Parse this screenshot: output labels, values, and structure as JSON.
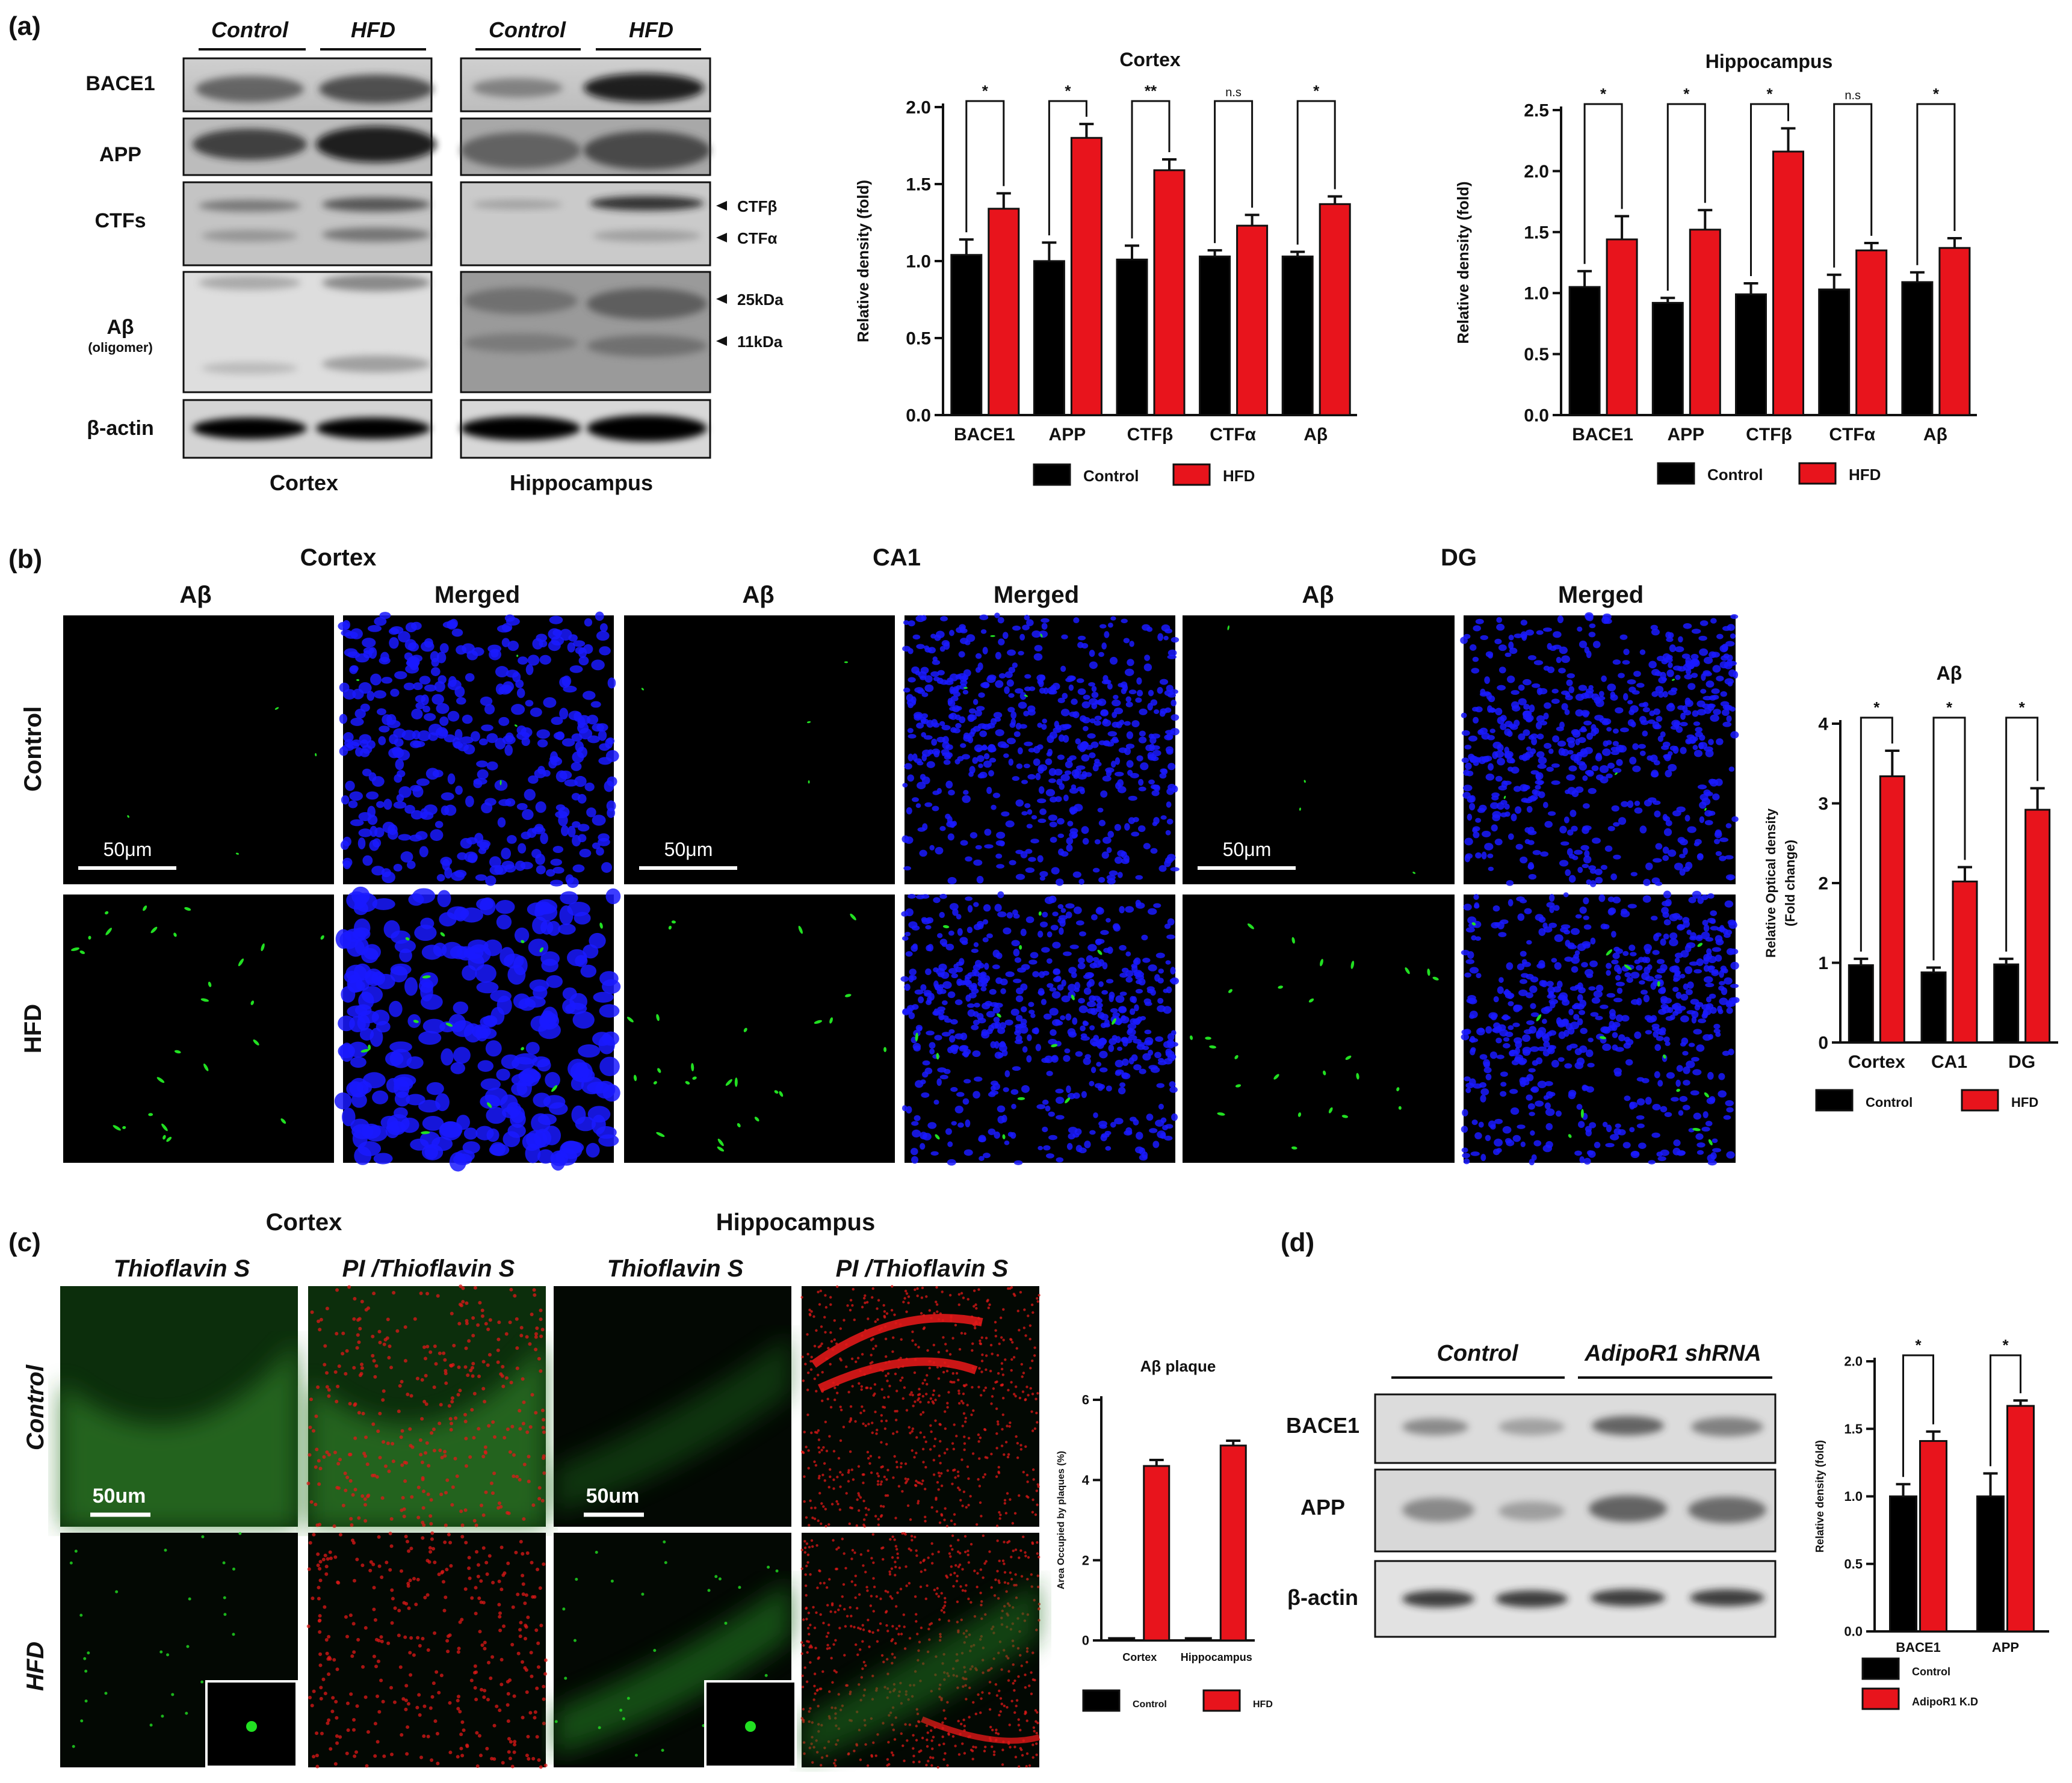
{
  "panel_a": {
    "letter": "(a)",
    "blot": {
      "group_headers": [
        "Control",
        "HFD"
      ],
      "row_labels": [
        "BACE1",
        "APP",
        "CTFs",
        "Aβ",
        "β-actin"
      ],
      "row_sublabel": "(oligomer)",
      "region_labels": [
        "Cortex",
        "Hippocampus"
      ],
      "band_markers": [
        "CTFβ",
        "CTFα",
        "25kDa",
        "11kDa"
      ]
    }
  },
  "panel_b": {
    "letter": "(b)",
    "region_titles": [
      "Cortex",
      "CA1",
      "DG"
    ],
    "column_titles": [
      "Aβ",
      "Merged",
      "Aβ",
      "Merged",
      "Aβ",
      "Merged"
    ],
    "row_labels": [
      "Control",
      "HFD"
    ],
    "scale_bar": "50μm"
  },
  "panel_c": {
    "letter": "(c)",
    "region_titles": [
      "Cortex",
      "Hippocampus"
    ],
    "column_titles": [
      "Thioflavin S",
      "PI /Thioflavin S",
      "Thioflavin S",
      "PI /Thioflavin S"
    ],
    "row_labels": [
      "Control",
      "HFD"
    ],
    "scale_bar": "50um"
  },
  "panel_d": {
    "letter": "(d)",
    "group_headers": [
      "Control",
      "AdipoR1 shRNA"
    ],
    "row_labels": [
      "BACE1",
      "APP",
      "β-actin"
    ]
  },
  "colors": {
    "control": "#000000",
    "treated": "#e8141c",
    "nuclei": "#1a1aff",
    "abeta": "#22e022",
    "pi": "#e01818"
  },
  "chart_data": [
    {
      "id": "a_cortex",
      "type": "bar",
      "title": "Cortex",
      "ylabel": "Relative density (fold)",
      "xlabel": "",
      "categories": [
        "BACE1",
        "APP",
        "CTFβ",
        "CTFα",
        "Aβ"
      ],
      "series": [
        {
          "name": "Control",
          "values": [
            1.04,
            1.0,
            1.01,
            1.03,
            1.03
          ],
          "errors": [
            0.1,
            0.12,
            0.09,
            0.04,
            0.03
          ]
        },
        {
          "name": "HFD",
          "values": [
            1.34,
            1.8,
            1.59,
            1.23,
            1.37
          ],
          "errors": [
            0.1,
            0.09,
            0.07,
            0.07,
            0.05
          ]
        }
      ],
      "significance": [
        "*",
        "*",
        "**",
        "n.s",
        "*"
      ],
      "ylim": [
        0,
        2.0
      ],
      "yticks": [
        0.0,
        0.5,
        1.0,
        1.5,
        2.0
      ],
      "tick_labels": [
        "0.0",
        "0.5",
        "1.0",
        "1.5",
        "2.0"
      ],
      "legend": [
        "Control",
        "HFD"
      ],
      "legend_position": "bottom"
    },
    {
      "id": "a_hippo",
      "type": "bar",
      "title": "Hippocampus",
      "ylabel": "Relative density (fold)",
      "xlabel": "",
      "categories": [
        "BACE1",
        "APP",
        "CTFβ",
        "CTFα",
        "Aβ"
      ],
      "series": [
        {
          "name": "Control",
          "values": [
            1.05,
            0.92,
            0.99,
            1.03,
            1.09
          ],
          "errors": [
            0.13,
            0.04,
            0.09,
            0.12,
            0.08
          ]
        },
        {
          "name": "HFD",
          "values": [
            1.44,
            1.52,
            2.16,
            1.35,
            1.37
          ],
          "errors": [
            0.19,
            0.16,
            0.19,
            0.06,
            0.08
          ]
        }
      ],
      "significance": [
        "*",
        "*",
        "*",
        "n.s",
        "*"
      ],
      "ylim": [
        0,
        2.5
      ],
      "yticks": [
        0.0,
        0.5,
        1.0,
        1.5,
        2.0,
        2.5
      ],
      "tick_labels": [
        "0.0",
        "0.5",
        "1.0",
        "1.5",
        "2.0",
        "2.5"
      ],
      "legend": [
        "Control",
        "HFD"
      ],
      "legend_position": "bottom"
    },
    {
      "id": "b_abeta",
      "type": "bar",
      "title": "Aβ",
      "ylabel": "Relative Optical density (Fold change)",
      "xlabel": "",
      "categories": [
        "Cortex",
        "CA1",
        "DG"
      ],
      "series": [
        {
          "name": "Control",
          "values": [
            0.97,
            0.88,
            0.98
          ],
          "errors": [
            0.08,
            0.06,
            0.07
          ]
        },
        {
          "name": "HFD",
          "values": [
            3.34,
            2.02,
            2.92
          ],
          "errors": [
            0.32,
            0.18,
            0.27
          ]
        }
      ],
      "significance": [
        "*",
        "*",
        "*"
      ],
      "ylim": [
        0,
        4
      ],
      "yticks": [
        0,
        1,
        2,
        3,
        4
      ],
      "tick_labels": [
        "0",
        "1",
        "2",
        "3",
        "4"
      ],
      "legend": [
        "Control",
        "HFD"
      ],
      "legend_position": "bottom"
    },
    {
      "id": "c_plaque",
      "type": "bar",
      "title": "Aβ plaque",
      "ylabel": "Area Occupied by plaques (%)",
      "xlabel": "",
      "categories": [
        "Cortex",
        "Hippocampus"
      ],
      "series": [
        {
          "name": "Control",
          "values": [
            0.06,
            0.06
          ],
          "errors": [
            0.0,
            0.0
          ]
        },
        {
          "name": "HFD",
          "values": [
            4.35,
            4.86
          ],
          "errors": [
            0.15,
            0.12
          ]
        }
      ],
      "significance": [],
      "ylim": [
        0,
        6
      ],
      "yticks": [
        0,
        2,
        4,
        6
      ],
      "tick_labels": [
        "0",
        "2",
        "4",
        "6"
      ],
      "legend": [
        "Control",
        "HFD"
      ],
      "legend_position": "bottom"
    },
    {
      "id": "d_kd",
      "type": "bar",
      "title": "",
      "ylabel": "Relative density (fold)",
      "xlabel": "",
      "categories": [
        "BACE1",
        "APP"
      ],
      "series": [
        {
          "name": "Control",
          "values": [
            1.0,
            1.0
          ],
          "errors": [
            0.09,
            0.17
          ]
        },
        {
          "name": "AdipoR1 K.D",
          "values": [
            1.41,
            1.67
          ],
          "errors": [
            0.07,
            0.04
          ]
        }
      ],
      "significance": [
        "*",
        "*"
      ],
      "ylim": [
        0,
        2.0
      ],
      "yticks": [
        0.0,
        0.5,
        1.0,
        1.5,
        2.0
      ],
      "tick_labels": [
        "0.0",
        "0.5",
        "1.0",
        "1.5",
        "2.0"
      ],
      "legend": [
        "Control",
        "AdipoR1 K.D"
      ],
      "legend_position": "bottom"
    }
  ]
}
